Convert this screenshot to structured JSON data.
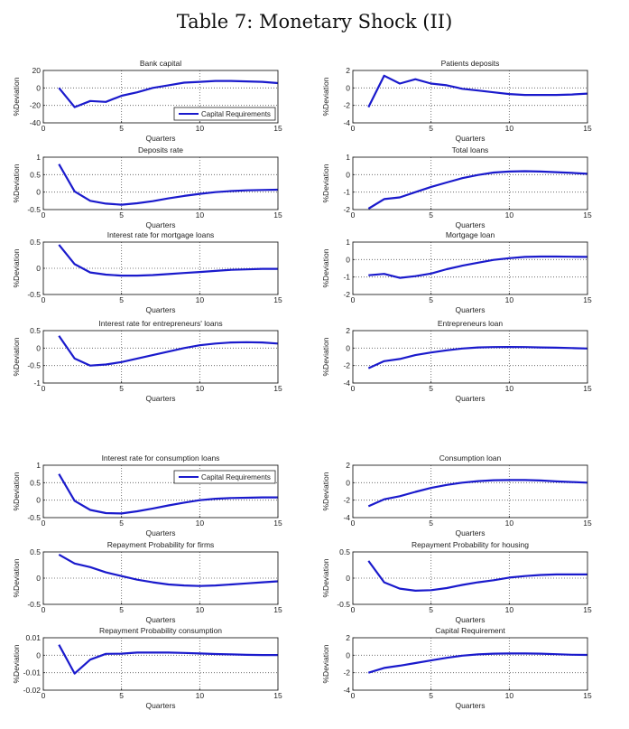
{
  "title": "Table 7: Monetary Shock (II)",
  "colors": {
    "line": "#1a1acc",
    "frame": "#222222",
    "grid": "#555555"
  },
  "chart_data": [
    {
      "type": "line",
      "title": "Bank capital",
      "xlabel": "Quarters",
      "ylabel": "%Deviation",
      "xlim": [
        0,
        15
      ],
      "ylim": [
        -40,
        20
      ],
      "xticks": [
        "0",
        "5",
        "10",
        "15"
      ],
      "yticks": [
        "-40",
        "-20",
        "0",
        "20"
      ],
      "grid": true,
      "legend": {
        "label": "Capital Requirements",
        "placement": "bottom-right"
      },
      "x": [
        1,
        2,
        3,
        4,
        5,
        6,
        7,
        8,
        9,
        10,
        11,
        12,
        13,
        14,
        15
      ],
      "series": [
        {
          "name": "Capital Requirements",
          "values": [
            0,
            -22,
            -15,
            -16,
            -9,
            -5,
            0,
            3,
            6,
            7,
            8,
            8,
            7.5,
            7,
            5.5
          ]
        }
      ]
    },
    {
      "type": "line",
      "title": "Patients deposits",
      "xlabel": "Quarters",
      "ylabel": "%Deviation",
      "xlim": [
        0,
        15
      ],
      "ylim": [
        -4,
        2
      ],
      "xticks": [
        "0",
        "5",
        "10",
        "15"
      ],
      "yticks": [
        "-4",
        "-2",
        "0",
        "2"
      ],
      "grid": true,
      "x": [
        1,
        2,
        3,
        4,
        5,
        6,
        7,
        8,
        9,
        10,
        11,
        12,
        13,
        14,
        15
      ],
      "series": [
        {
          "name": "Capital Requirements",
          "values": [
            -2.2,
            1.4,
            0.5,
            1.0,
            0.5,
            0.3,
            -0.1,
            -0.3,
            -0.5,
            -0.7,
            -0.8,
            -0.8,
            -0.8,
            -0.75,
            -0.65
          ]
        }
      ]
    },
    {
      "type": "line",
      "title": "Deposits rate",
      "xlabel": "Quarters",
      "ylabel": "%Deviation",
      "xlim": [
        0,
        15
      ],
      "ylim": [
        -0.5,
        1
      ],
      "xticks": [
        "0",
        "5",
        "10",
        "15"
      ],
      "yticks": [
        "-0.5",
        "0",
        "0.5",
        "1"
      ],
      "grid": true,
      "x": [
        1,
        2,
        3,
        4,
        5,
        6,
        7,
        8,
        9,
        10,
        11,
        12,
        13,
        14,
        15
      ],
      "series": [
        {
          "name": "Capital Requirements",
          "values": [
            0.8,
            0.02,
            -0.25,
            -0.33,
            -0.36,
            -0.32,
            -0.26,
            -0.18,
            -0.11,
            -0.05,
            0.0,
            0.03,
            0.05,
            0.06,
            0.07
          ]
        }
      ]
    },
    {
      "type": "line",
      "title": "Total loans",
      "xlabel": "Quarters",
      "ylabel": "%Deviation",
      "xlim": [
        0,
        15
      ],
      "ylim": [
        -2,
        1
      ],
      "xticks": [
        "0",
        "5",
        "10",
        "15"
      ],
      "yticks": [
        "-2",
        "-1",
        "0",
        "1"
      ],
      "grid": true,
      "x": [
        1,
        2,
        3,
        4,
        5,
        6,
        7,
        8,
        9,
        10,
        11,
        12,
        13,
        14,
        15
      ],
      "series": [
        {
          "name": "Capital Requirements",
          "values": [
            -1.95,
            -1.4,
            -1.3,
            -1.0,
            -0.7,
            -0.45,
            -0.2,
            -0.02,
            0.12,
            0.18,
            0.2,
            0.18,
            0.14,
            0.1,
            0.05
          ]
        }
      ]
    },
    {
      "type": "line",
      "title": "Interest rate for mortgage loans",
      "xlabel": "Quarters",
      "ylabel": "%Deviation",
      "xlim": [
        0,
        15
      ],
      "ylim": [
        -0.5,
        0.5
      ],
      "xticks": [
        "0",
        "5",
        "10",
        "15"
      ],
      "yticks": [
        "-0.5",
        "0",
        "0.5"
      ],
      "grid": true,
      "x": [
        1,
        2,
        3,
        4,
        5,
        6,
        7,
        8,
        9,
        10,
        11,
        12,
        13,
        14,
        15
      ],
      "series": [
        {
          "name": "Capital Requirements",
          "values": [
            0.45,
            0.08,
            -0.08,
            -0.12,
            -0.14,
            -0.14,
            -0.13,
            -0.11,
            -0.09,
            -0.07,
            -0.05,
            -0.03,
            -0.02,
            -0.01,
            -0.01
          ]
        }
      ]
    },
    {
      "type": "line",
      "title": "Mortgage loan",
      "xlabel": "Quarters",
      "ylabel": "%Deviation",
      "xlim": [
        0,
        15
      ],
      "ylim": [
        -2,
        1
      ],
      "xticks": [
        "0",
        "5",
        "10",
        "15"
      ],
      "yticks": [
        "-2",
        "-1",
        "0",
        "1"
      ],
      "grid": true,
      "x": [
        1,
        2,
        3,
        4,
        5,
        6,
        7,
        8,
        9,
        10,
        11,
        12,
        13,
        14,
        15
      ],
      "series": [
        {
          "name": "Capital Requirements",
          "values": [
            -0.9,
            -0.82,
            -1.05,
            -0.95,
            -0.8,
            -0.55,
            -0.35,
            -0.18,
            -0.02,
            0.08,
            0.15,
            0.17,
            0.17,
            0.16,
            0.15
          ]
        }
      ]
    },
    {
      "type": "line",
      "title": "Interest rate for entrepreneurs' loans",
      "xlabel": "Quarters",
      "ylabel": "%Deviation",
      "xlim": [
        0,
        15
      ],
      "ylim": [
        -1,
        0.5
      ],
      "xticks": [
        "0",
        "5",
        "10",
        "15"
      ],
      "yticks": [
        "-1",
        "-0.5",
        "0",
        "0.5"
      ],
      "grid": true,
      "x": [
        1,
        2,
        3,
        4,
        5,
        6,
        7,
        8,
        9,
        10,
        11,
        12,
        13,
        14,
        15
      ],
      "series": [
        {
          "name": "Capital Requirements",
          "values": [
            0.35,
            -0.3,
            -0.5,
            -0.47,
            -0.4,
            -0.3,
            -0.2,
            -0.1,
            0.0,
            0.08,
            0.13,
            0.16,
            0.17,
            0.16,
            0.13
          ]
        }
      ]
    },
    {
      "type": "line",
      "title": "Entrepreneurs loan",
      "xlabel": "Quarters",
      "ylabel": "%Deviation",
      "xlim": [
        0,
        15
      ],
      "ylim": [
        -4,
        2
      ],
      "xticks": [
        "0",
        "5",
        "10",
        "15"
      ],
      "yticks": [
        "-4",
        "-2",
        "0",
        "2"
      ],
      "grid": true,
      "x": [
        1,
        2,
        3,
        4,
        5,
        6,
        7,
        8,
        9,
        10,
        11,
        12,
        13,
        14,
        15
      ],
      "series": [
        {
          "name": "Capital Requirements",
          "values": [
            -2.3,
            -1.5,
            -1.25,
            -0.8,
            -0.5,
            -0.25,
            -0.05,
            0.08,
            0.12,
            0.13,
            0.12,
            0.08,
            0.04,
            0.0,
            -0.05
          ]
        }
      ]
    },
    {
      "type": "line",
      "title": "Interest rate for consumption loans",
      "xlabel": "Quarters",
      "ylabel": "%Deviation",
      "xlim": [
        0,
        15
      ],
      "ylim": [
        -0.5,
        1
      ],
      "xticks": [
        "0",
        "5",
        "10",
        "15"
      ],
      "yticks": [
        "-0.5",
        "0",
        "0.5",
        "1"
      ],
      "grid": true,
      "legend": {
        "label": "Capital Requirements",
        "placement": "top-right"
      },
      "x": [
        1,
        2,
        3,
        4,
        5,
        6,
        7,
        8,
        9,
        10,
        11,
        12,
        13,
        14,
        15
      ],
      "series": [
        {
          "name": "Capital Requirements",
          "values": [
            0.75,
            -0.02,
            -0.28,
            -0.37,
            -0.38,
            -0.32,
            -0.24,
            -0.15,
            -0.07,
            0.0,
            0.04,
            0.06,
            0.07,
            0.08,
            0.08
          ]
        }
      ]
    },
    {
      "type": "line",
      "title": "Consumption loan",
      "xlabel": "Quarters",
      "ylabel": "%Deviation",
      "xlim": [
        0,
        15
      ],
      "ylim": [
        -4,
        2
      ],
      "xticks": [
        "0",
        "5",
        "10",
        "15"
      ],
      "yticks": [
        "-4",
        "-2",
        "0",
        "2"
      ],
      "grid": true,
      "x": [
        1,
        2,
        3,
        4,
        5,
        6,
        7,
        8,
        9,
        10,
        11,
        12,
        13,
        14,
        15
      ],
      "series": [
        {
          "name": "Capital Requirements",
          "values": [
            -2.7,
            -1.9,
            -1.55,
            -1.05,
            -0.6,
            -0.25,
            0.0,
            0.18,
            0.28,
            0.3,
            0.3,
            0.25,
            0.15,
            0.08,
            0.0
          ]
        }
      ]
    },
    {
      "type": "line",
      "title": "Repayment Probability for firms",
      "xlabel": "Quarters",
      "ylabel": "%Deviation",
      "xlim": [
        0,
        15
      ],
      "ylim": [
        -0.5,
        0.5
      ],
      "xticks": [
        "0",
        "5",
        "10",
        "15"
      ],
      "yticks": [
        "-0.5",
        "0",
        "0.5"
      ],
      "grid": true,
      "x": [
        1,
        2,
        3,
        4,
        5,
        6,
        7,
        8,
        9,
        10,
        11,
        12,
        13,
        14,
        15
      ],
      "series": [
        {
          "name": "Capital Requirements",
          "values": [
            0.45,
            0.28,
            0.21,
            0.11,
            0.04,
            -0.03,
            -0.08,
            -0.12,
            -0.14,
            -0.15,
            -0.14,
            -0.12,
            -0.1,
            -0.08,
            -0.06
          ]
        }
      ]
    },
    {
      "type": "line",
      "title": "Repayment Probability for housing",
      "xlabel": "Quarters",
      "ylabel": "%Deviation",
      "xlim": [
        0,
        15
      ],
      "ylim": [
        -0.5,
        0.5
      ],
      "xticks": [
        "0",
        "5",
        "10",
        "15"
      ],
      "yticks": [
        "-0.5",
        "0",
        "0.5"
      ],
      "grid": true,
      "x": [
        1,
        2,
        3,
        4,
        5,
        6,
        7,
        8,
        9,
        10,
        11,
        12,
        13,
        14,
        15
      ],
      "series": [
        {
          "name": "Capital Requirements",
          "values": [
            0.33,
            -0.08,
            -0.2,
            -0.24,
            -0.23,
            -0.19,
            -0.13,
            -0.08,
            -0.04,
            0.01,
            0.04,
            0.06,
            0.07,
            0.07,
            0.07
          ]
        }
      ]
    },
    {
      "type": "line",
      "title": "Repayment Probability consumption",
      "xlabel": "Quarters",
      "ylabel": "%Deviation",
      "xlim": [
        0,
        15
      ],
      "ylim": [
        -0.02,
        0.01
      ],
      "xticks": [
        "0",
        "5",
        "10",
        "15"
      ],
      "yticks": [
        "-0.02",
        "-0.01",
        "0",
        "0.01"
      ],
      "grid": true,
      "x": [
        1,
        2,
        3,
        4,
        5,
        6,
        7,
        8,
        9,
        10,
        11,
        12,
        13,
        14,
        15
      ],
      "series": [
        {
          "name": "Capital Requirements",
          "values": [
            0.006,
            -0.0105,
            -0.0025,
            0.0008,
            0.0009,
            0.0015,
            0.0015,
            0.0015,
            0.0013,
            0.001,
            0.0007,
            0.0005,
            0.0002,
            0.0001,
            0.0001
          ]
        }
      ]
    },
    {
      "type": "line",
      "title": "Capital Requirement",
      "xlabel": "Quarters",
      "ylabel": "%Deviation",
      "xlim": [
        0,
        15
      ],
      "ylim": [
        -4,
        2
      ],
      "xticks": [
        "0",
        "5",
        "10",
        "15"
      ],
      "yticks": [
        "-4",
        "-2",
        "0",
        "2"
      ],
      "grid": true,
      "x": [
        1,
        2,
        3,
        4,
        5,
        6,
        7,
        8,
        9,
        10,
        11,
        12,
        13,
        14,
        15
      ],
      "series": [
        {
          "name": "Capital Requirements",
          "values": [
            -2.0,
            -1.45,
            -1.2,
            -0.9,
            -0.6,
            -0.3,
            -0.05,
            0.1,
            0.18,
            0.2,
            0.2,
            0.18,
            0.12,
            0.06,
            0.03
          ]
        }
      ]
    }
  ]
}
